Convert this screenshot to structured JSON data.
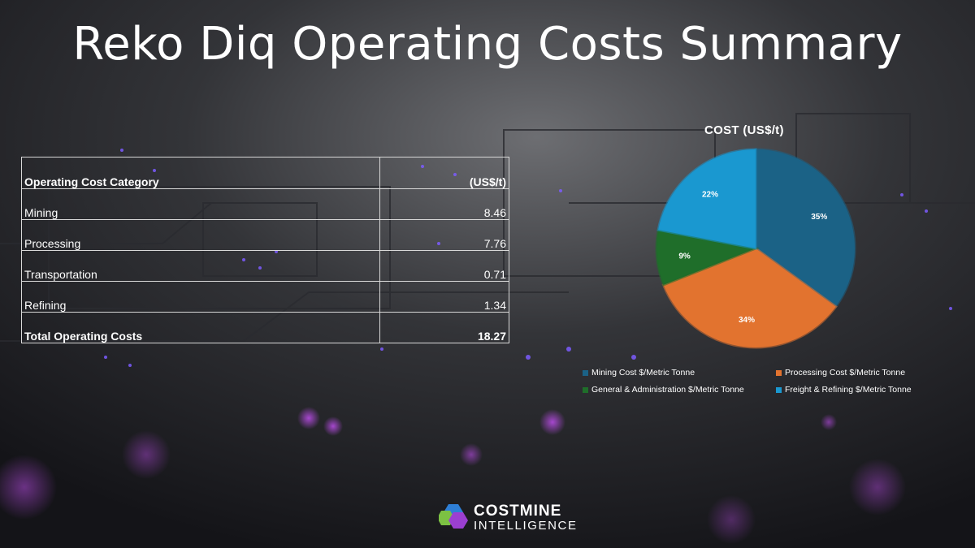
{
  "slide": {
    "title": "Reko Diq Operating Costs Summary"
  },
  "table": {
    "headers": [
      "Operating Cost Category",
      "(US$/t)"
    ],
    "rows": [
      {
        "category": "Mining",
        "value": "8.46"
      },
      {
        "category": "Processing",
        "value": "7.76"
      },
      {
        "category": "Transportation",
        "value": "0.71"
      },
      {
        "category": "Refining",
        "value": "1.34"
      }
    ],
    "total": {
      "category": "Total Operating Costs",
      "value": "18.27"
    }
  },
  "chart_data": {
    "type": "pie",
    "title": "COST (US$/t)",
    "categories": [
      "Mining Cost $/Metric Tonne",
      "Processing Cost $/Metric Tonne",
      "General & Administration $/Metric Tonne",
      "Freight & Refining $/Metric Tonne"
    ],
    "values": [
      35,
      34,
      9,
      22
    ],
    "labels": [
      "35%",
      "34%",
      "9%",
      "22%"
    ],
    "colors": [
      "#1b6286",
      "#e2732f",
      "#1f6e2a",
      "#1a98d0"
    ],
    "legend_position": "bottom"
  },
  "logo": {
    "line1": "COSTMINE",
    "line2": "INTELLIGENCE"
  }
}
